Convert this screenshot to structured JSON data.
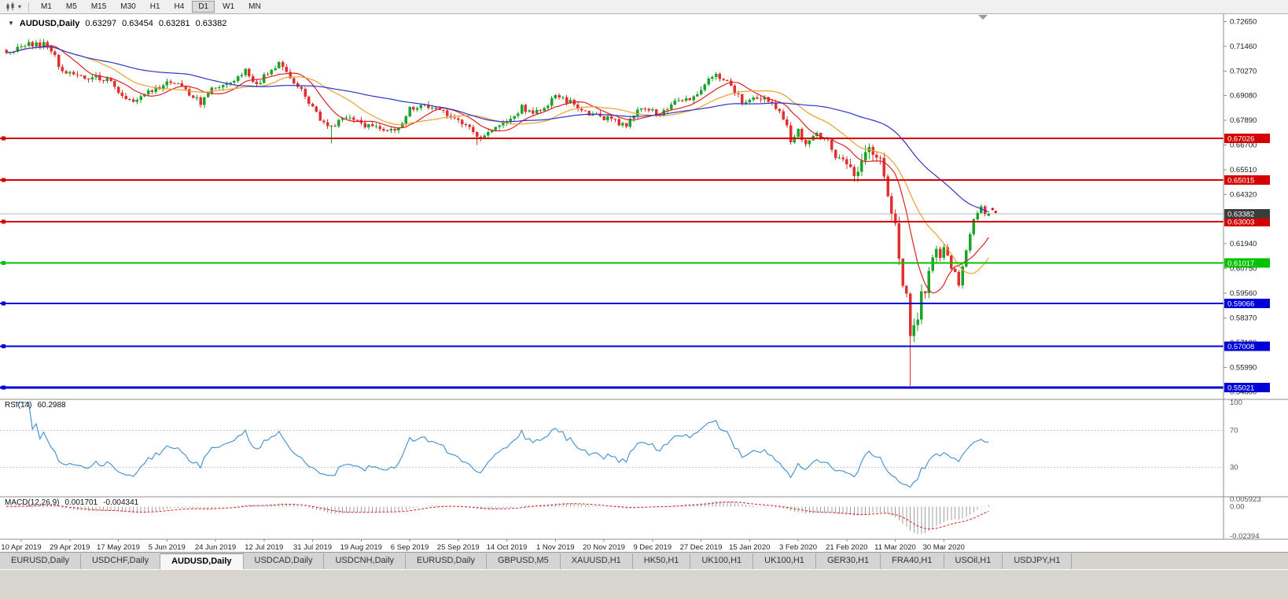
{
  "toolbar": {
    "timeframes": [
      "M1",
      "M5",
      "M15",
      "M30",
      "H1",
      "H4",
      "D1",
      "W1",
      "MN"
    ],
    "active_timeframe": "D1"
  },
  "chart": {
    "title": "AUDUSD,Daily",
    "ohlc": {
      "open": "0.63297",
      "high": "0.63454",
      "low": "0.63281",
      "close": "0.63382"
    }
  },
  "indicators": {
    "rsi": {
      "name": "RSI(14)",
      "value": "60.2988"
    },
    "macd": {
      "name": "MACD(12,26,9)",
      "value": "0.001701",
      "signal_value": "-0.004341"
    }
  },
  "axes": {
    "price_labels": [
      "0.72650",
      "0.71460",
      "0.70270",
      "0.69080",
      "0.67890",
      "0.66700",
      "0.65510",
      "0.64320",
      "0.63130",
      "0.61940",
      "0.60750",
      "0.59560",
      "0.58370",
      "0.57180",
      "0.55990",
      "0.54800"
    ],
    "rsi_labels": [
      "100",
      "70",
      "30"
    ],
    "macd_labels": [
      "0.005923",
      "0.00",
      "-0.02394"
    ],
    "date_labels": [
      "10 Apr 2019",
      "29 Apr 2019",
      "17 May 2019",
      "5 Jun 2019",
      "24 Jun 2019",
      "12 Jul 2019",
      "31 Jul 2019",
      "19 Aug 2019",
      "6 Sep 2019",
      "25 Sep 2019",
      "14 Oct 2019",
      "1 Nov 2019",
      "20 Nov 2019",
      "9 Dec 2019",
      "27 Dec 2019",
      "15 Jan 2020",
      "3 Feb 2020",
      "21 Feb 2020",
      "11 Mar 2020",
      "30 Mar 2020"
    ]
  },
  "levels": [
    {
      "price": 0.67026,
      "label": "0.67026",
      "color": "#d40000",
      "width": 2
    },
    {
      "price": 0.65015,
      "label": "0.65015",
      "color": "#d40000",
      "width": 2
    },
    {
      "price": 0.63003,
      "label": "0.63003",
      "color": "#d40000",
      "width": 2
    },
    {
      "price": 0.61017,
      "label": "0.61017",
      "color": "#00c200",
      "width": 2
    },
    {
      "price": 0.59066,
      "label": "0.59066",
      "color": "#0000d8",
      "width": 2
    },
    {
      "price": 0.57008,
      "label": "0.57008",
      "color": "#0000d8",
      "width": 2
    },
    {
      "price": 0.55021,
      "label": "0.55021",
      "color": "#0000d8",
      "width": 3
    }
  ],
  "current_price": "0.63382",
  "tabs": {
    "items": [
      "EURUSD,Daily",
      "USDCHF,Daily",
      "AUDUSD,Daily",
      "USDCAD,Daily",
      "USDCNH,Daily",
      "EURUSD,Daily",
      "GBPUSD,M5",
      "XAUUSD,H1",
      "HK50,H1",
      "UK100,H1",
      "UK100,H1",
      "GER30,H1",
      "FRA40,H1",
      "USOil,H1",
      "USDJPY,H1"
    ],
    "active_index": 2
  },
  "colors": {
    "up": "#1aa327",
    "down": "#e03030",
    "rsi": "#3d8ed0",
    "macd_hist": "#a0a0a0",
    "macd_signal": "#dd2222",
    "bid_line": "#b8b8b8",
    "badge_current": "#3c3c3c"
  },
  "chart_data": {
    "type": "candlestick",
    "symbol": "AUDUSD",
    "timeframe": "Daily",
    "candle_count": 264,
    "first_label_index": 4,
    "label_step": 13,
    "price_axis": {
      "max_top": 0.7265,
      "step": 0.0119
    },
    "macd_axis": {
      "max": 0.005923,
      "min": -0.02394
    },
    "rsi_period": 14,
    "rsi_level_lines": [
      70,
      30
    ],
    "macd": {
      "fast": 12,
      "slow": 26,
      "signal": 9
    },
    "moving_averages": [
      {
        "period": 10,
        "color": "#e02020"
      },
      {
        "period": 21,
        "color": "#e8a22c"
      },
      {
        "period": 50,
        "color": "#2d34c8"
      }
    ],
    "volatile_range": [
      225,
      250
    ],
    "close_anchors": [
      [
        0,
        0.7112
      ],
      [
        3,
        0.714
      ],
      [
        6,
        0.7163
      ],
      [
        9,
        0.715
      ],
      [
        11,
        0.7162
      ],
      [
        13,
        0.7095
      ],
      [
        15,
        0.7018
      ],
      [
        19,
        0.7008
      ],
      [
        23,
        0.6996
      ],
      [
        27,
        0.699
      ],
      [
        30,
        0.6932
      ],
      [
        33,
        0.6878
      ],
      [
        36,
        0.6902
      ],
      [
        40,
        0.6936
      ],
      [
        44,
        0.6978
      ],
      [
        47,
        0.6954
      ],
      [
        52,
        0.6872
      ],
      [
        56,
        0.6958
      ],
      [
        61,
        0.6968
      ],
      [
        64,
        0.7024
      ],
      [
        67,
        0.695
      ],
      [
        69,
        0.7
      ],
      [
        73,
        0.706
      ],
      [
        77,
        0.6978
      ],
      [
        80,
        0.6902
      ],
      [
        82,
        0.6843
      ],
      [
        84,
        0.68
      ],
      [
        87,
        0.6763
      ],
      [
        91,
        0.6793
      ],
      [
        95,
        0.6772
      ],
      [
        99,
        0.6756
      ],
      [
        103,
        0.6738
      ],
      [
        106,
        0.6762
      ],
      [
        108,
        0.6842
      ],
      [
        112,
        0.6866
      ],
      [
        116,
        0.6832
      ],
      [
        120,
        0.6798
      ],
      [
        124,
        0.6752
      ],
      [
        126,
        0.6706
      ],
      [
        130,
        0.6733
      ],
      [
        134,
        0.679
      ],
      [
        138,
        0.6852
      ],
      [
        142,
        0.6826
      ],
      [
        147,
        0.6904
      ],
      [
        150,
        0.6886
      ],
      [
        154,
        0.6841
      ],
      [
        158,
        0.6812
      ],
      [
        162,
        0.6788
      ],
      [
        166,
        0.6764
      ],
      [
        169,
        0.684
      ],
      [
        172,
        0.6848
      ],
      [
        175,
        0.6813
      ],
      [
        178,
        0.6861
      ],
      [
        181,
        0.6888
      ],
      [
        184,
        0.6898
      ],
      [
        186,
        0.6941
      ],
      [
        189,
        0.7
      ],
      [
        190,
        0.702
      ],
      [
        192,
        0.6986
      ],
      [
        195,
        0.6925
      ],
      [
        197,
        0.6873
      ],
      [
        200,
        0.6897
      ],
      [
        203,
        0.6891
      ],
      [
        206,
        0.6848
      ],
      [
        209,
        0.6773
      ],
      [
        210,
        0.6692
      ],
      [
        212,
        0.6741
      ],
      [
        214,
        0.6673
      ],
      [
        217,
        0.6717
      ],
      [
        220,
        0.6692
      ],
      [
        222,
        0.6613
      ],
      [
        224,
        0.66
      ],
      [
        226,
        0.6547
      ],
      [
        228,
        0.6516
      ],
      [
        230,
        0.663
      ],
      [
        232,
        0.6641
      ],
      [
        234,
        0.6586
      ],
      [
        236,
        0.6421
      ],
      [
        237,
        0.6341
      ],
      [
        238,
        0.6296
      ],
      [
        239,
        0.6121
      ],
      [
        240,
        0.5991
      ],
      [
        241,
        0.5956
      ],
      [
        242,
        0.5746
      ],
      [
        243,
        0.5801
      ],
      [
        244,
        0.5826
      ],
      [
        245,
        0.5964
      ],
      [
        246,
        0.5956
      ],
      [
        247,
        0.6064
      ],
      [
        248,
        0.6131
      ],
      [
        249,
        0.6171
      ],
      [
        250,
        0.6126
      ],
      [
        251,
        0.6176
      ],
      [
        252,
        0.6136
      ],
      [
        253,
        0.6071
      ],
      [
        254,
        0.6061
      ],
      [
        255,
        0.5991
      ],
      [
        256,
        0.6086
      ],
      [
        257,
        0.6166
      ],
      [
        258,
        0.6241
      ],
      [
        259,
        0.6311
      ],
      [
        260,
        0.6346
      ],
      [
        261,
        0.6376
      ],
      [
        262,
        0.6341
      ],
      [
        263,
        0.63382
      ]
    ],
    "overrides": {
      "87": {
        "l": 0.6677
      },
      "126": {
        "l": 0.667
      },
      "242": {
        "l": 0.551
      },
      "263": {
        "o": 0.63297,
        "h": 0.63454,
        "l": 0.63281,
        "c": 0.63382
      }
    },
    "marker_dots": [
      {
        "price": 0.6362
      },
      {
        "price": 0.6348
      }
    ]
  }
}
